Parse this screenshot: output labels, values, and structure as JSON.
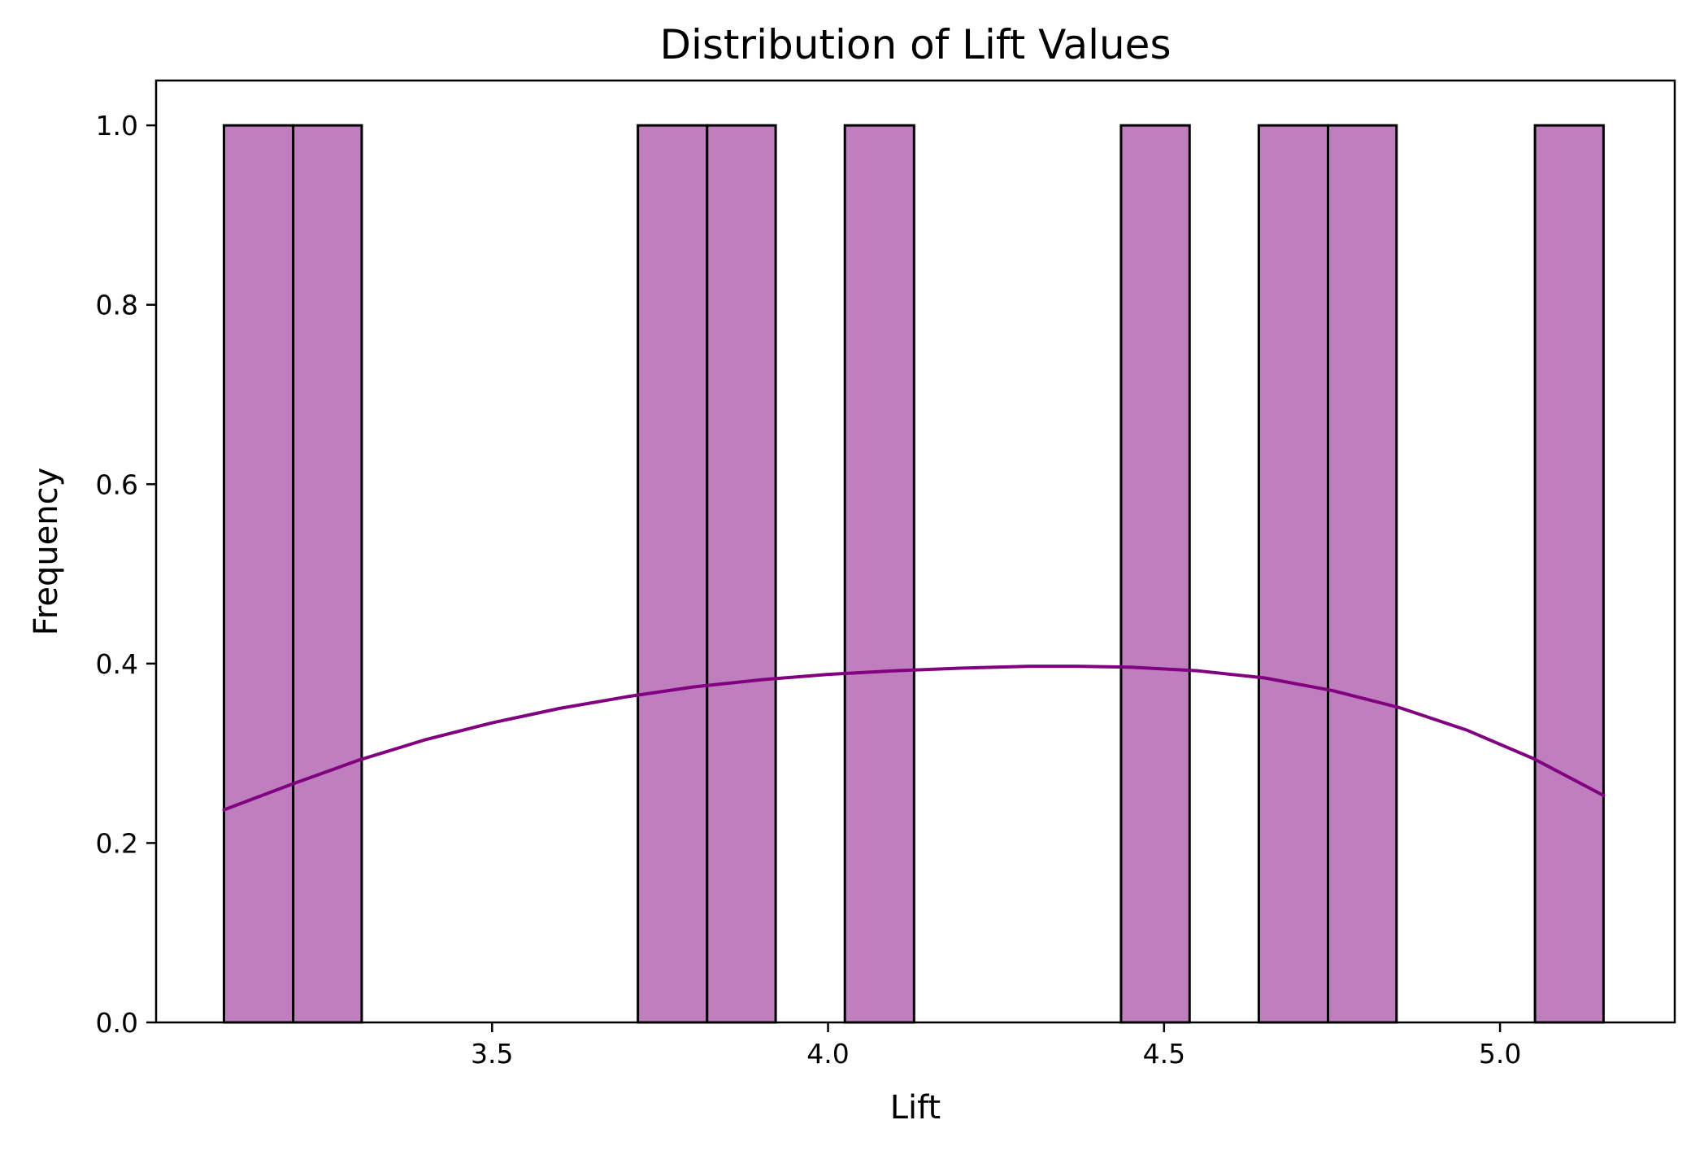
{
  "chart_data": {
    "type": "bar",
    "title": "Distribution of Lift Values",
    "xlabel": "Lift",
    "ylabel": "Frequency",
    "xlim": [
      3.0,
      5.26
    ],
    "ylim": [
      0.0,
      1.05
    ],
    "xticks": [
      3.5,
      4.0,
      4.5,
      5.0
    ],
    "xtick_labels": [
      "3.5",
      "4.0",
      "4.5",
      "5.0"
    ],
    "yticks": [
      0.0,
      0.2,
      0.4,
      0.6,
      0.8,
      1.0
    ],
    "ytick_labels": [
      "0.0",
      "0.2",
      "0.4",
      "0.6",
      "0.8",
      "1.0"
    ],
    "grid": false,
    "bars": [
      {
        "x0": 3.101,
        "x1": 3.204,
        "value": 1
      },
      {
        "x0": 3.204,
        "x1": 3.306,
        "value": 1
      },
      {
        "x0": 3.717,
        "x1": 3.82,
        "value": 1
      },
      {
        "x0": 3.82,
        "x1": 3.922,
        "value": 1
      },
      {
        "x0": 4.025,
        "x1": 4.128,
        "value": 1
      },
      {
        "x0": 4.436,
        "x1": 4.538,
        "value": 1
      },
      {
        "x0": 4.641,
        "x1": 4.744,
        "value": 1
      },
      {
        "x0": 4.744,
        "x1": 4.846,
        "value": 1
      },
      {
        "x0": 5.052,
        "x1": 5.154,
        "value": 1
      }
    ],
    "kde": {
      "x": [
        3.101,
        3.2,
        3.3,
        3.4,
        3.5,
        3.6,
        3.7,
        3.8,
        3.9,
        4.0,
        4.1,
        4.2,
        4.3,
        4.37,
        4.45,
        4.55,
        4.65,
        4.75,
        4.85,
        4.95,
        5.05,
        5.154
      ],
      "y": [
        0.237,
        0.265,
        0.292,
        0.315,
        0.334,
        0.35,
        0.363,
        0.374,
        0.382,
        0.388,
        0.392,
        0.395,
        0.397,
        0.397,
        0.396,
        0.392,
        0.384,
        0.37,
        0.351,
        0.326,
        0.294,
        0.253
      ]
    },
    "colors": {
      "bar_fill": "#bf7fbf",
      "bar_edge": "#000000",
      "kde_line": "#800080"
    }
  }
}
